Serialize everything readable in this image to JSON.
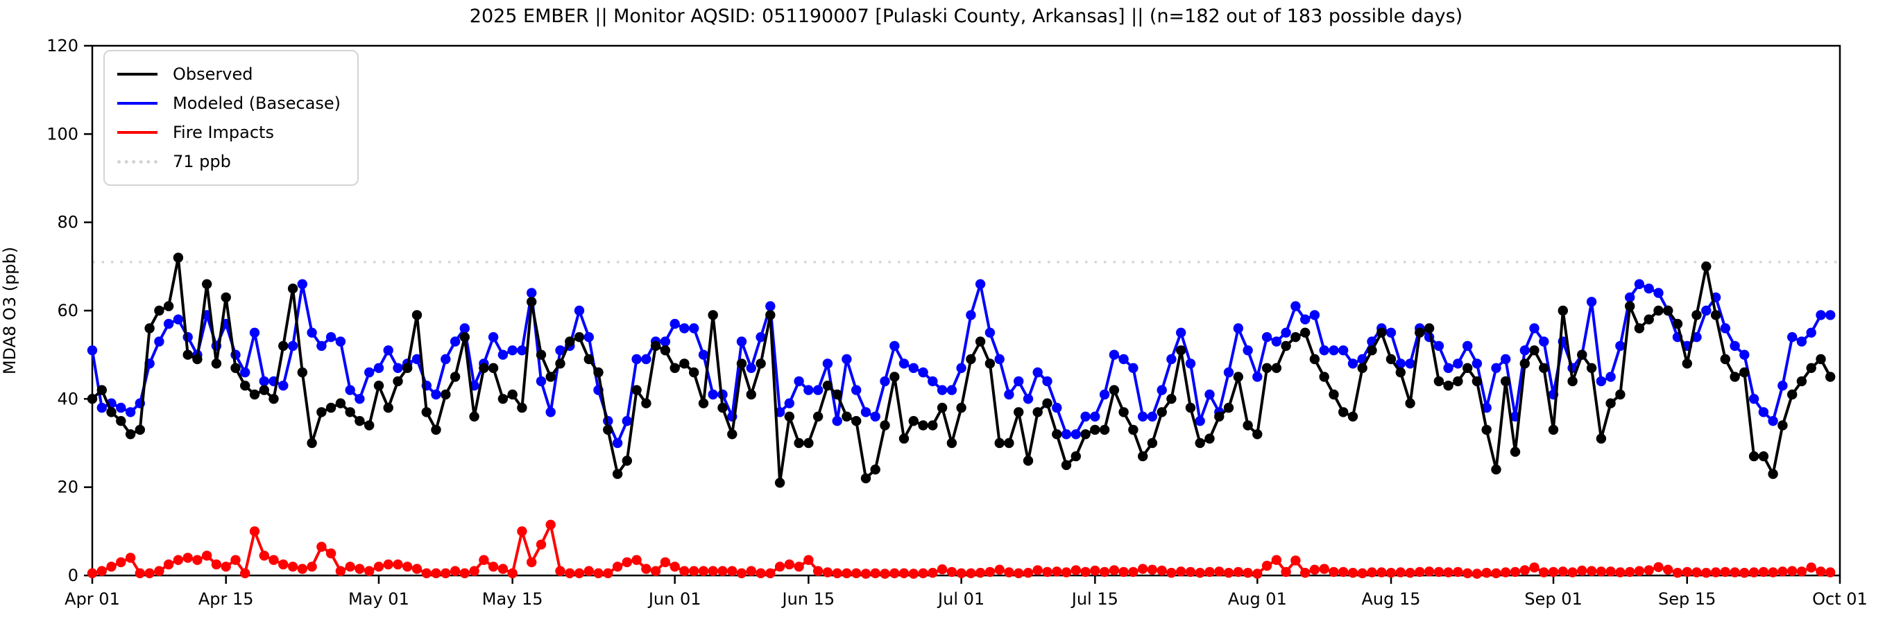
{
  "title": "2025 EMBER || Monitor AQSID: 051190007 [Pulaski County, Arkansas] || (n=182 out of 183 possible days)",
  "chart_data": {
    "type": "line",
    "title": "2025 EMBER || Monitor AQSID: 051190007 [Pulaski County, Arkansas] || (n=182 out of 183 possible days)",
    "xlabel": "",
    "ylabel": "MDA8 O3 (ppb)",
    "ylim": [
      0,
      120
    ],
    "yticks": [
      0,
      20,
      40,
      60,
      80,
      100,
      120
    ],
    "grid": false,
    "legend_position": "upper left",
    "n_days": 183,
    "x_start": "Apr 01",
    "x_end": "Oct 01",
    "x_tick_labels": [
      "Apr 01",
      "Apr 15",
      "May 01",
      "May 15",
      "Jun 01",
      "Jun 15",
      "Jul 01",
      "Jul 15",
      "Aug 01",
      "Aug 15",
      "Sep 01",
      "Sep 15",
      "Oct 01"
    ],
    "x_tick_days": [
      0,
      14,
      30,
      44,
      61,
      75,
      91,
      105,
      122,
      136,
      153,
      167,
      183
    ],
    "threshold": {
      "value": 71,
      "label": "71 ppb",
      "color": "#d3d3d3",
      "style": "dotted"
    },
    "legend": [
      {
        "label": "Observed",
        "color": "#000000",
        "style": "solid"
      },
      {
        "label": "Modeled (Basecase)",
        "color": "#0000ff",
        "style": "solid"
      },
      {
        "label": "Fire Impacts",
        "color": "#ff0000",
        "style": "solid"
      },
      {
        "label": "71 ppb",
        "color": "#d3d3d3",
        "style": "dotted"
      }
    ],
    "series": [
      {
        "name": "Observed",
        "color": "#000000",
        "values": [
          40,
          42,
          37,
          35,
          32,
          33,
          56,
          60,
          61,
          72,
          50,
          49,
          66,
          48,
          63,
          47,
          43,
          41,
          42,
          40,
          52,
          65,
          46,
          30,
          37,
          38,
          39,
          37,
          35,
          34,
          43,
          38,
          44,
          47,
          59,
          37,
          33,
          41,
          45,
          54,
          36,
          47,
          47,
          40,
          41,
          38,
          62,
          50,
          45,
          48,
          53,
          54,
          49,
          46,
          33,
          23,
          26,
          42,
          39,
          52,
          51,
          47,
          48,
          46,
          39,
          59,
          38,
          32,
          48,
          41,
          48,
          59,
          21,
          36,
          30,
          30,
          36,
          43,
          41,
          36,
          35,
          22,
          24,
          34,
          45,
          31,
          35,
          34,
          34,
          38,
          30,
          38,
          49,
          53,
          48,
          30,
          30,
          37,
          26,
          37,
          39,
          32,
          25,
          27,
          32,
          33,
          33,
          42,
          37,
          33,
          27,
          30,
          37,
          40,
          51,
          38,
          30,
          31,
          36,
          38,
          45,
          34,
          32,
          47,
          47,
          52,
          54,
          55,
          49,
          45,
          41,
          37,
          36,
          47,
          51,
          55,
          49,
          46,
          39,
          55,
          56,
          44,
          43,
          44,
          47,
          44,
          33,
          24,
          44,
          28,
          48,
          51,
          47,
          33,
          60,
          44,
          50,
          47,
          31,
          39,
          41,
          61,
          56,
          58,
          60,
          60,
          57,
          48,
          59,
          70,
          59,
          49,
          45,
          46,
          27,
          27,
          23,
          34,
          41,
          44,
          47,
          49,
          45
        ]
      },
      {
        "name": "Modeled (Basecase)",
        "color": "#0000ff",
        "values": [
          51,
          38,
          39,
          38,
          37,
          39,
          48,
          53,
          57,
          58,
          54,
          50,
          59,
          52,
          57,
          50,
          46,
          55,
          44,
          44,
          43,
          52,
          66,
          55,
          52,
          54,
          53,
          42,
          40,
          46,
          47,
          51,
          47,
          48,
          49,
          43,
          41,
          49,
          53,
          56,
          43,
          48,
          54,
          50,
          51,
          51,
          64,
          44,
          37,
          51,
          52,
          60,
          54,
          42,
          35,
          30,
          35,
          49,
          49,
          53,
          53,
          57,
          56,
          56,
          50,
          41,
          41,
          36,
          53,
          47,
          54,
          61,
          37,
          39,
          44,
          42,
          42,
          48,
          35,
          49,
          42,
          37,
          36,
          44,
          52,
          48,
          47,
          46,
          44,
          42,
          42,
          47,
          59,
          66,
          55,
          49,
          41,
          44,
          40,
          46,
          44,
          38,
          32,
          32,
          36,
          36,
          41,
          50,
          49,
          47,
          36,
          36,
          42,
          49,
          55,
          48,
          35,
          41,
          37,
          46,
          56,
          51,
          45,
          54,
          53,
          55,
          61,
          58,
          59,
          51,
          51,
          51,
          48,
          49,
          53,
          56,
          55,
          48,
          48,
          56,
          54,
          52,
          47,
          48,
          52,
          48,
          38,
          47,
          49,
          36,
          51,
          56,
          53,
          41,
          53,
          47,
          50,
          62,
          44,
          45,
          52,
          63,
          66,
          65,
          64,
          60,
          54,
          52,
          54,
          60,
          63,
          56,
          52,
          50,
          40,
          37,
          35,
          43,
          54,
          53,
          55,
          59,
          59
        ]
      },
      {
        "name": "Fire Impacts",
        "color": "#ff0000",
        "values": [
          0.5,
          1,
          2,
          3,
          4,
          0.5,
          0.5,
          1,
          2.5,
          3.5,
          4,
          3.5,
          4.5,
          2.5,
          2,
          3.5,
          0.5,
          10,
          4.5,
          3.5,
          2.5,
          2,
          1.5,
          2,
          6.5,
          5,
          1,
          2,
          1.5,
          1,
          2,
          2.5,
          2.5,
          2,
          1.5,
          0.5,
          0.5,
          0.5,
          1,
          0.5,
          1,
          3.5,
          2,
          1.5,
          0.5,
          10,
          3,
          7,
          11.5,
          1,
          0.5,
          0.5,
          1,
          0.5,
          0.5,
          2,
          3,
          3.5,
          1.5,
          1,
          3,
          2,
          1,
          1,
          1,
          1,
          1,
          1,
          0.5,
          1,
          0.5,
          0.5,
          2,
          2.5,
          2,
          3.5,
          1,
          0.7,
          0.5,
          0.5,
          0.5,
          0.4,
          0.5,
          0.4,
          0.5,
          0.5,
          0.4,
          0.5,
          0.6,
          1.4,
          0.8,
          0.5,
          0.5,
          0.6,
          0.8,
          1.3,
          0.7,
          0.5,
          0.6,
          1.2,
          0.8,
          0.9,
          0.7,
          1.2,
          0.8,
          1.1,
          0.8,
          1.2,
          0.8,
          0.8,
          1.5,
          1.3,
          1.1,
          0.6,
          0.9,
          0.8,
          0.6,
          0.8,
          0.9,
          0.6,
          0.8,
          0.6,
          0.4,
          2.2,
          3.5,
          0.8,
          3.4,
          0.6,
          1.3,
          1.5,
          0.8,
          0.8,
          0.6,
          0.5,
          0.7,
          0.7,
          0.6,
          0.7,
          0.6,
          0.8,
          0.9,
          0.8,
          0.7,
          0.8,
          0.5,
          0.4,
          0.6,
          0.5,
          0.7,
          0.8,
          1.2,
          1.8,
          0.7,
          0.8,
          0.9,
          0.7,
          1.1,
          1,
          0.9,
          0.9,
          0.7,
          0.8,
          1,
          1.2,
          1.9,
          1.3,
          0.6,
          0.8,
          0.7,
          0.6,
          0.7,
          0.8,
          0.7,
          0.6,
          0.7,
          0.8,
          0.7,
          0.9,
          1,
          0.9,
          1.8,
          0.9,
          0.7
        ]
      }
    ]
  }
}
